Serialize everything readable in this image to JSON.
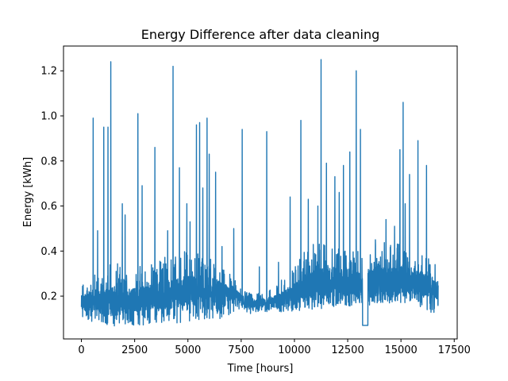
{
  "chart_data": {
    "type": "line",
    "title": "Energy Difference after data cleaning",
    "xlabel": "Time [hours]",
    "ylabel": "Energy [kWh]",
    "xlim": [
      -840,
      17640
    ],
    "ylim": [
      0.01,
      1.31
    ],
    "xticks": [
      0,
      2500,
      5000,
      7500,
      10000,
      12500,
      15000,
      17500
    ],
    "xtick_labels": [
      "0",
      "2500",
      "5000",
      "7500",
      "10000",
      "12500",
      "15000",
      "17500"
    ],
    "yticks": [
      0.2,
      0.4,
      0.6,
      0.8,
      1.0,
      1.2
    ],
    "ytick_labels": [
      "0.2",
      "0.4",
      "0.6",
      "0.8",
      "1.0",
      "1.2"
    ],
    "grid": false,
    "legend": "none",
    "line_color": "#1f77b4",
    "series": [
      {
        "x_range": [
          0,
          16750
        ],
        "baseline": [
          [
            0,
            0.13
          ],
          [
            500,
            0.14
          ],
          [
            1000,
            0.12
          ],
          [
            1500,
            0.11
          ],
          [
            2000,
            0.12
          ],
          [
            2500,
            0.13
          ],
          [
            3000,
            0.13
          ],
          [
            3500,
            0.14
          ],
          [
            4000,
            0.14
          ],
          [
            4500,
            0.15
          ],
          [
            5000,
            0.16
          ],
          [
            5500,
            0.16
          ],
          [
            6000,
            0.17
          ],
          [
            6500,
            0.17
          ],
          [
            7000,
            0.18
          ],
          [
            7300,
            0.18
          ],
          [
            7600,
            0.16
          ],
          [
            8000,
            0.15
          ],
          [
            8500,
            0.15
          ],
          [
            9000,
            0.15
          ],
          [
            9500,
            0.15
          ],
          [
            10000,
            0.16
          ],
          [
            10500,
            0.18
          ],
          [
            11000,
            0.18
          ],
          [
            11500,
            0.2
          ],
          [
            12000,
            0.21
          ],
          [
            12500,
            0.2
          ],
          [
            13000,
            0.19
          ],
          [
            13500,
            0.19
          ],
          [
            14000,
            0.2
          ],
          [
            14500,
            0.2
          ],
          [
            15000,
            0.21
          ],
          [
            15500,
            0.21
          ],
          [
            16000,
            0.2
          ],
          [
            16500,
            0.19
          ],
          [
            16750,
            0.18
          ]
        ],
        "band_top": [
          [
            0,
            0.26
          ],
          [
            500,
            0.3
          ],
          [
            1000,
            0.32
          ],
          [
            1500,
            0.36
          ],
          [
            2000,
            0.32
          ],
          [
            2500,
            0.34
          ],
          [
            3000,
            0.34
          ],
          [
            3500,
            0.36
          ],
          [
            4000,
            0.38
          ],
          [
            4500,
            0.4
          ],
          [
            5000,
            0.4
          ],
          [
            5500,
            0.4
          ],
          [
            6000,
            0.4
          ],
          [
            6500,
            0.34
          ],
          [
            7000,
            0.3
          ],
          [
            7300,
            0.26
          ],
          [
            7600,
            0.23
          ],
          [
            8000,
            0.21
          ],
          [
            8500,
            0.22
          ],
          [
            9000,
            0.24
          ],
          [
            9500,
            0.28
          ],
          [
            10000,
            0.34
          ],
          [
            10500,
            0.4
          ],
          [
            11000,
            0.44
          ],
          [
            11500,
            0.44
          ],
          [
            12000,
            0.42
          ],
          [
            12500,
            0.42
          ],
          [
            13000,
            0.4
          ],
          [
            13500,
            0.44
          ],
          [
            14000,
            0.44
          ],
          [
            14500,
            0.44
          ],
          [
            15000,
            0.44
          ],
          [
            15500,
            0.42
          ],
          [
            16000,
            0.4
          ],
          [
            16500,
            0.36
          ],
          [
            16750,
            0.28
          ]
        ],
        "floor": [
          [
            0,
            0.09
          ],
          [
            500,
            0.08
          ],
          [
            1000,
            0.08
          ],
          [
            1500,
            0.06
          ],
          [
            2000,
            0.07
          ],
          [
            2500,
            0.07
          ],
          [
            3000,
            0.07
          ],
          [
            3500,
            0.08
          ],
          [
            4000,
            0.08
          ],
          [
            4500,
            0.08
          ],
          [
            5000,
            0.09
          ],
          [
            5500,
            0.09
          ],
          [
            6000,
            0.09
          ],
          [
            6500,
            0.1
          ],
          [
            7000,
            0.12
          ],
          [
            7300,
            0.13
          ],
          [
            7600,
            0.11
          ],
          [
            8000,
            0.12
          ],
          [
            8500,
            0.13
          ],
          [
            9000,
            0.13
          ],
          [
            9500,
            0.13
          ],
          [
            10000,
            0.13
          ],
          [
            10500,
            0.14
          ],
          [
            11000,
            0.14
          ],
          [
            11500,
            0.14
          ],
          [
            12000,
            0.16
          ],
          [
            12500,
            0.15
          ],
          [
            13000,
            0.15
          ],
          [
            13500,
            0.16
          ],
          [
            14000,
            0.17
          ],
          [
            14500,
            0.17
          ],
          [
            15000,
            0.17
          ],
          [
            15500,
            0.17
          ],
          [
            16000,
            0.14
          ],
          [
            16500,
            0.12
          ],
          [
            16750,
            0.16
          ]
        ],
        "flat_segments": [
          {
            "x_start": 13200,
            "x_end": 13450,
            "y": 0.07
          }
        ],
        "spikes": [
          [
            80,
            0.23
          ],
          [
            550,
            0.99
          ],
          [
            760,
            0.49
          ],
          [
            1050,
            0.95
          ],
          [
            1250,
            0.95
          ],
          [
            1380,
            1.24
          ],
          [
            1920,
            0.61
          ],
          [
            2050,
            0.56
          ],
          [
            2650,
            1.01
          ],
          [
            2850,
            0.69
          ],
          [
            3450,
            0.86
          ],
          [
            4050,
            0.49
          ],
          [
            4300,
            1.22
          ],
          [
            4600,
            0.77
          ],
          [
            4950,
            0.61
          ],
          [
            5100,
            0.53
          ],
          [
            5400,
            0.96
          ],
          [
            5550,
            0.97
          ],
          [
            5700,
            0.68
          ],
          [
            5900,
            0.99
          ],
          [
            6000,
            0.83
          ],
          [
            6300,
            0.75
          ],
          [
            6600,
            0.42
          ],
          [
            7150,
            0.5
          ],
          [
            7550,
            0.94
          ],
          [
            8350,
            0.33
          ],
          [
            8700,
            0.93
          ],
          [
            9250,
            0.35
          ],
          [
            9800,
            0.64
          ],
          [
            10300,
            0.98
          ],
          [
            10650,
            0.63
          ],
          [
            11100,
            0.6
          ],
          [
            11250,
            1.25
          ],
          [
            11500,
            0.79
          ],
          [
            11900,
            0.73
          ],
          [
            12100,
            0.66
          ],
          [
            12300,
            0.78
          ],
          [
            12600,
            0.84
          ],
          [
            12900,
            1.2
          ],
          [
            13100,
            0.94
          ],
          [
            13400,
            0.57
          ],
          [
            13800,
            0.45
          ],
          [
            14300,
            0.54
          ],
          [
            14700,
            0.51
          ],
          [
            14950,
            0.85
          ],
          [
            15100,
            1.06
          ],
          [
            15200,
            0.61
          ],
          [
            15400,
            0.74
          ],
          [
            15800,
            0.89
          ],
          [
            16200,
            0.78
          ],
          [
            16600,
            0.34
          ]
        ]
      }
    ]
  }
}
